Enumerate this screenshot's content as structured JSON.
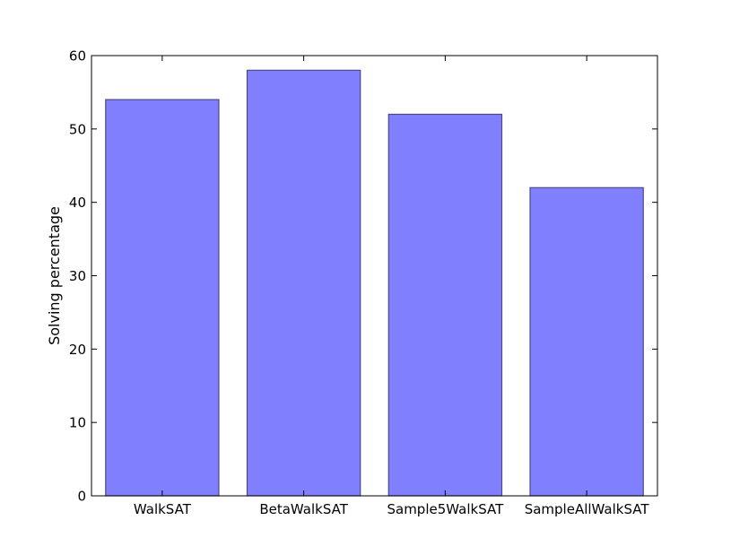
{
  "chart_data": {
    "type": "bar",
    "title": "",
    "xlabel": "",
    "ylabel": "Solving percentage",
    "categories": [
      "WalkSAT",
      "BetaWalkSAT",
      "Sample5WalkSAT",
      "SampleAllWalkSAT"
    ],
    "values": [
      54,
      58,
      52,
      42
    ],
    "ylim": [
      0,
      60
    ],
    "yticks": [
      0,
      10,
      20,
      30,
      40,
      50,
      60
    ],
    "grid": false,
    "legend": "none",
    "colors": {
      "bar_fill": "#8080ff",
      "bar_edge": "#4a4a8a",
      "axis": "#000000"
    }
  }
}
